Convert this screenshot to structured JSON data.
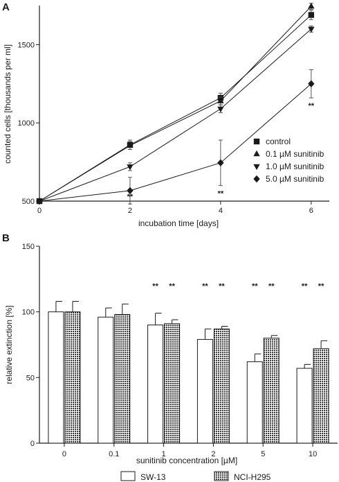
{
  "chart_data": [
    {
      "panel": "A",
      "type": "line",
      "xlabel": "incubation time [days]",
      "ylabel": "counted cells [thousands  per ml]",
      "x": [
        0,
        2,
        4,
        6
      ],
      "xticks": [
        "0",
        "2",
        "4",
        "6"
      ],
      "yticks": [
        "500",
        "1000",
        "1500"
      ],
      "ylim": [
        500,
        1750
      ],
      "xlim": [
        0,
        6.4
      ],
      "grid": false,
      "legend_position": "bottom-right",
      "series": [
        {
          "name": "control",
          "marker": "square",
          "values": [
            500,
            860,
            1160,
            1690
          ],
          "errors": [
            0,
            30,
            30,
            30
          ]
        },
        {
          "name": "0.1 µM sunitinib",
          "marker": "triangle-up",
          "values": [
            500,
            855,
            1140,
            1745
          ],
          "errors": [
            0,
            25,
            25,
            20
          ]
        },
        {
          "name": "1.0 µM sunitinib",
          "marker": "triangle-down",
          "values": [
            500,
            720,
            1090,
            1600
          ],
          "errors": [
            0,
            25,
            25,
            20
          ]
        },
        {
          "name": "5.0 µM sunitinib",
          "marker": "diamond",
          "values": [
            500,
            567,
            745,
            1250
          ],
          "errors": [
            0,
            85,
            145,
            90
          ]
        }
      ],
      "annotations": [
        {
          "x": 2,
          "text": "**"
        },
        {
          "x": 4,
          "text": "**"
        },
        {
          "x": 6,
          "text": "**"
        }
      ]
    },
    {
      "panel": "B",
      "type": "bar",
      "xlabel": "sunitinib concentration [µM]",
      "ylabel": "relative extinction [%]",
      "categories": [
        "0",
        "0.1",
        "1",
        "2",
        "5",
        "10"
      ],
      "yticks": [
        "0",
        "50",
        "100",
        "150"
      ],
      "ylim": [
        0,
        150
      ],
      "grid": false,
      "legend_position": "bottom",
      "series": [
        {
          "name": "SW-13",
          "fill": "white",
          "values": [
            100,
            96,
            90,
            79,
            62,
            57
          ],
          "errors": [
            8,
            7,
            9,
            8,
            6,
            3
          ]
        },
        {
          "name": "NCI-H295",
          "fill": "hatched",
          "values": [
            100,
            98,
            91,
            87,
            80,
            72
          ],
          "errors": [
            8,
            8,
            3,
            2,
            2,
            6
          ]
        }
      ],
      "significance": [
        "",
        "",
        "**",
        "**",
        "**",
        "**"
      ]
    }
  ]
}
